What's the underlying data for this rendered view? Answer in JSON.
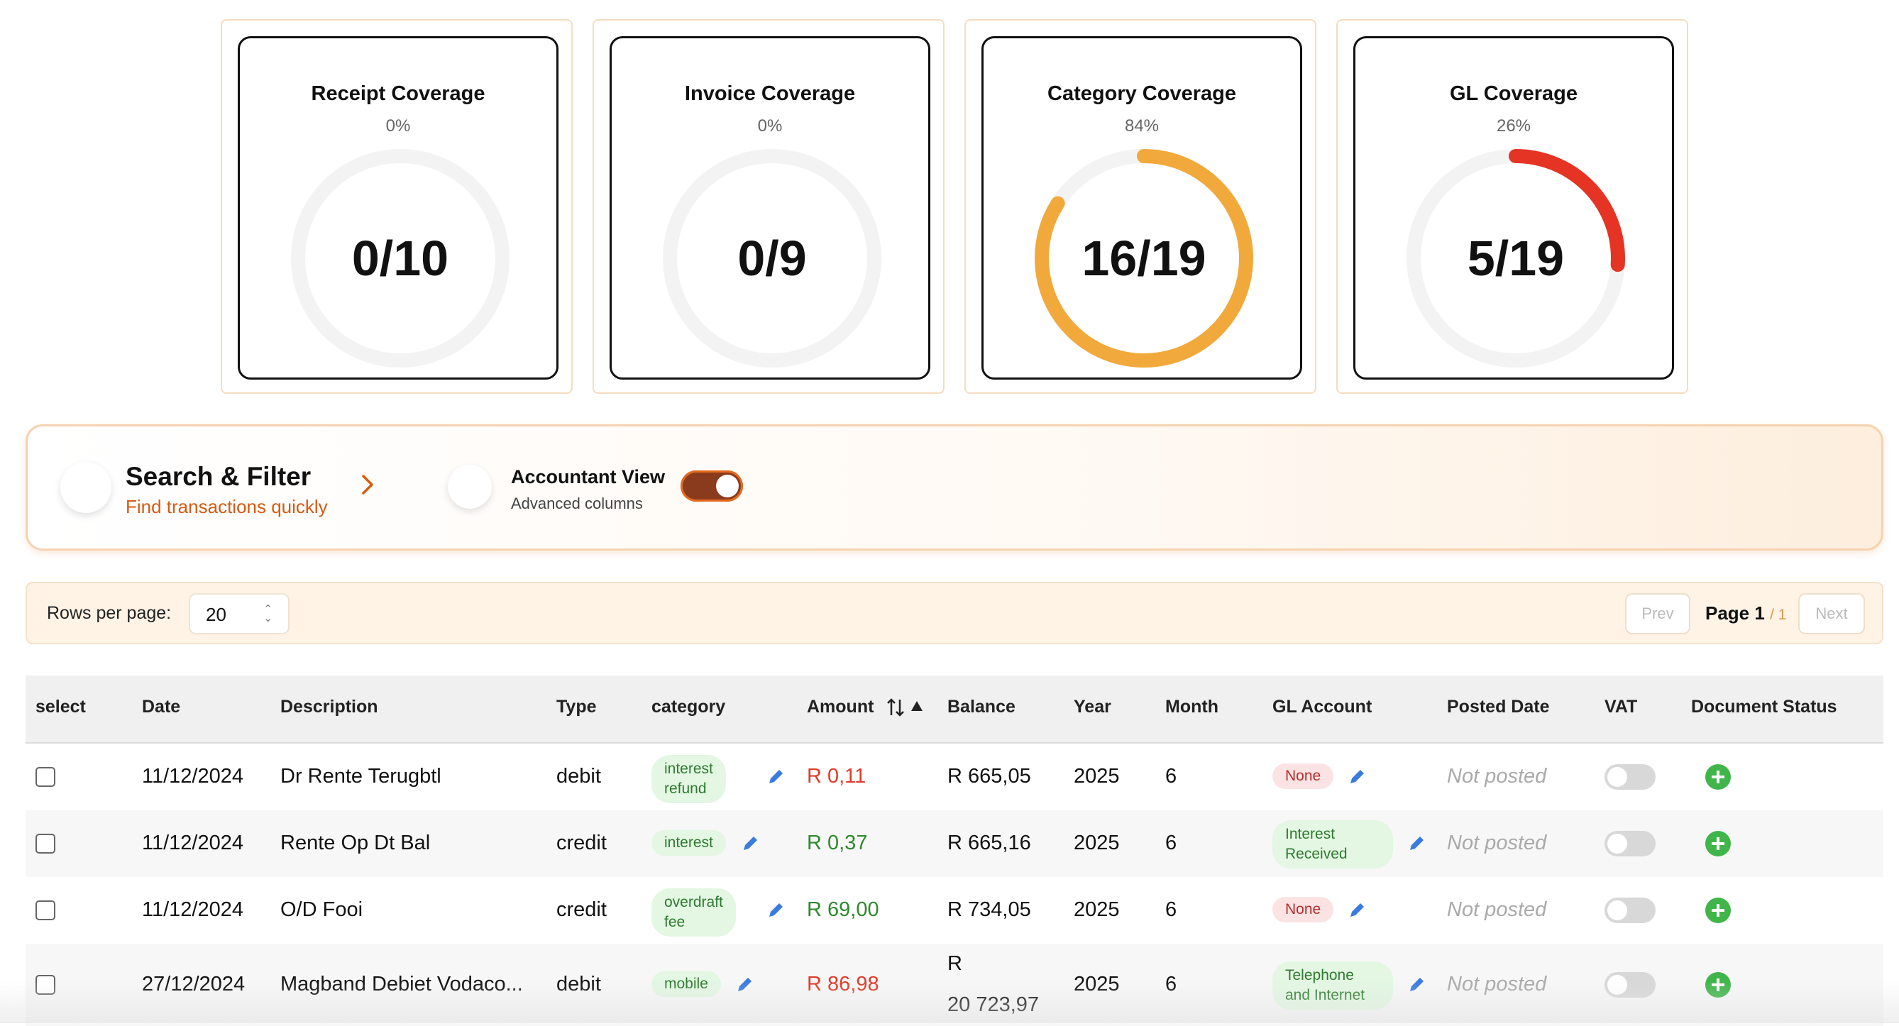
{
  "cards": [
    {
      "title": "Receipt Coverage",
      "percent_label": "0%",
      "value": "0/10",
      "fraction": 0,
      "color": ""
    },
    {
      "title": "Invoice Coverage",
      "percent_label": "0%",
      "value": "0/9",
      "fraction": 0,
      "color": ""
    },
    {
      "title": "Category Coverage",
      "percent_label": "84%",
      "value": "16/19",
      "fraction": 0.84,
      "color": "#f2a93b"
    },
    {
      "title": "GL Coverage",
      "percent_label": "26%",
      "value": "5/19",
      "fraction": 0.26,
      "color": "#e53424"
    }
  ],
  "filter": {
    "title": "Search & Filter",
    "subtitle": "Find transactions quickly",
    "accountant_view_title": "Accountant View",
    "accountant_view_subtitle": "Advanced columns",
    "accountant_view_on": true
  },
  "pager": {
    "rows_label": "Rows per page:",
    "rows_value": "20",
    "prev_label": "Prev",
    "next_label": "Next",
    "page_label": "Page 1",
    "page_total": "/ 1"
  },
  "table": {
    "headers": {
      "select": "select",
      "date": "Date",
      "description": "Description",
      "type": "Type",
      "category": "category",
      "amount": "Amount",
      "balance": "Balance",
      "year": "Year",
      "month": "Month",
      "gl_account": "GL Account",
      "posted_date": "Posted Date",
      "vat": "VAT",
      "document_status": "Document Status"
    },
    "rows": [
      {
        "date": "11/12/2024",
        "description": "Dr Rente Terugbtl",
        "type": "debit",
        "category_l1": "interest",
        "category_l2": "refund",
        "amount": "R 0,11",
        "amount_sign": "negative",
        "balance_l1": "R 665,05",
        "balance_l2": "",
        "year": "2025",
        "month": "6",
        "gl_l1": "None",
        "gl_l2": "",
        "gl_none": true,
        "posted": "Not posted"
      },
      {
        "date": "11/12/2024",
        "description": "Rente Op Dt Bal",
        "type": "credit",
        "category_l1": "interest",
        "category_l2": "",
        "amount": "R 0,37",
        "amount_sign": "positive",
        "balance_l1": "R 665,16",
        "balance_l2": "",
        "year": "2025",
        "month": "6",
        "gl_l1": "Interest",
        "gl_l2": "Received",
        "gl_none": false,
        "posted": "Not posted"
      },
      {
        "date": "11/12/2024",
        "description": "O/D Fooi",
        "type": "credit",
        "category_l1": "overdraft",
        "category_l2": "fee",
        "amount": "R 69,00",
        "amount_sign": "positive",
        "balance_l1": "R 734,05",
        "balance_l2": "",
        "year": "2025",
        "month": "6",
        "gl_l1": "None",
        "gl_l2": "",
        "gl_none": true,
        "posted": "Not posted"
      },
      {
        "date": "27/12/2024",
        "description": "Magband Debiet Vodaco...",
        "type": "debit",
        "category_l1": "mobile",
        "category_l2": "",
        "amount": "R 86,98",
        "amount_sign": "negative",
        "balance_l1": "R",
        "balance_l2": "20 723,97",
        "year": "2025",
        "month": "6",
        "gl_l1": "Telephone",
        "gl_l2": "and Internet",
        "gl_none": false,
        "posted": "Not posted"
      }
    ]
  }
}
